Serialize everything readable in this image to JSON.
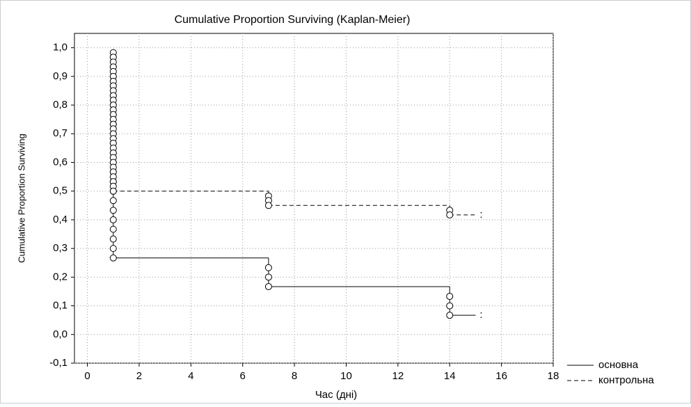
{
  "chart_data": {
    "type": "step",
    "title": "Cumulative Proportion Surviving (Kaplan-Meier)",
    "x_label": "Час (дні)",
    "y_label": "Cumulative Proportion Surviving",
    "xlim": [
      -0.5,
      18
    ],
    "xticks": [
      0,
      2,
      4,
      6,
      8,
      10,
      12,
      14,
      16,
      18
    ],
    "ylim": [
      -0.1,
      1.05
    ],
    "yticks": [
      {
        "value": -0.1,
        "label": "-0,1"
      },
      {
        "value": 0,
        "label": "0,0"
      },
      {
        "value": 0.1,
        "label": "0,1"
      },
      {
        "value": 0.2,
        "label": "0,2"
      },
      {
        "value": 0.3,
        "label": "0,3"
      },
      {
        "value": 0.4,
        "label": "0,4"
      },
      {
        "value": 0.5,
        "label": "0,5"
      },
      {
        "value": 0.6,
        "label": "0,6"
      },
      {
        "value": 0.7,
        "label": "0,7"
      },
      {
        "value": 0.8,
        "label": "0,8"
      },
      {
        "value": 0.9,
        "label": "0,9"
      },
      {
        "value": 1.0,
        "label": "1,0"
      }
    ],
    "grid": true,
    "series": [
      {
        "name": "основна",
        "color": "#000000",
        "dash": false,
        "x": [
          1,
          1,
          1,
          1,
          1,
          1,
          1,
          1,
          1,
          1,
          1,
          1,
          1,
          1,
          1,
          1,
          1,
          1,
          1,
          1,
          1,
          1,
          7,
          7,
          7,
          14,
          14,
          14,
          15
        ],
        "values": [
          0.967,
          0.933,
          0.9,
          0.867,
          0.833,
          0.8,
          0.767,
          0.733,
          0.7,
          0.667,
          0.633,
          0.6,
          0.567,
          0.533,
          0.5,
          0.467,
          0.433,
          0.4,
          0.367,
          0.333,
          0.3,
          0.267,
          0.233,
          0.2,
          0.167,
          0.133,
          0.1,
          0.067,
          0.067
        ]
      },
      {
        "name": "контрольна",
        "color": "#000000",
        "dash": true,
        "x": [
          1,
          1,
          1,
          1,
          1,
          1,
          1,
          1,
          1,
          1,
          1,
          1,
          1,
          1,
          1,
          1,
          1,
          1,
          1,
          1,
          1,
          1,
          1,
          1,
          1,
          1,
          1,
          1,
          1,
          1,
          7,
          7,
          7,
          14,
          14,
          15
        ],
        "values": [
          0.983,
          0.967,
          0.95,
          0.933,
          0.917,
          0.9,
          0.883,
          0.867,
          0.85,
          0.833,
          0.817,
          0.8,
          0.783,
          0.767,
          0.75,
          0.733,
          0.717,
          0.7,
          0.683,
          0.667,
          0.65,
          0.633,
          0.617,
          0.6,
          0.583,
          0.567,
          0.55,
          0.533,
          0.517,
          0.5,
          0.483,
          0.467,
          0.45,
          0.433,
          0.417,
          0.417
        ]
      }
    ]
  }
}
